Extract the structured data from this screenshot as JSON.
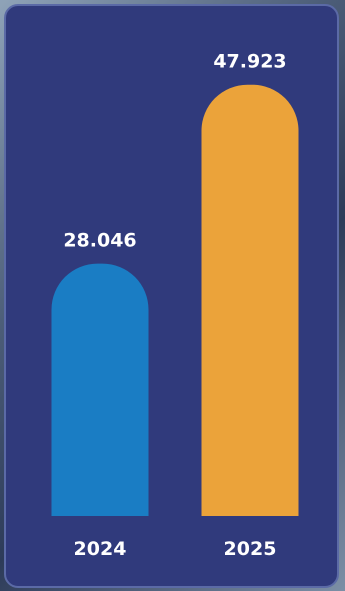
{
  "chart_data": {
    "type": "bar",
    "categories": [
      "2024",
      "2025"
    ],
    "values": [
      28.046,
      47.923
    ],
    "value_labels": [
      "28.046",
      "47.923"
    ],
    "colors": [
      "#1a7dc4",
      "#eba33a"
    ],
    "ylim": [
      0,
      50
    ],
    "grid": false,
    "legend": "none"
  },
  "colors": {
    "card_background": "#303a7c",
    "card_border": "#5b6aa6",
    "text": "#ffffff"
  }
}
